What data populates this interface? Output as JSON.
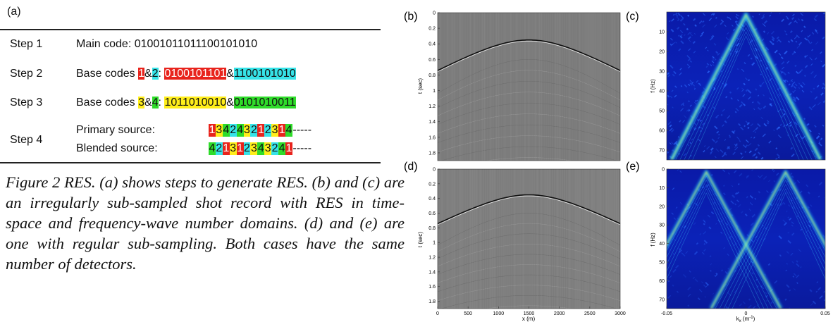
{
  "panel_a": {
    "label": "(a)",
    "steps": [
      {
        "name": "Step 1",
        "text": "Main code: 01001011011100101010"
      },
      {
        "name": "Step 2",
        "prefix": "Base codes ",
        "tag1": "1",
        "amp": "&",
        "tag2": "2",
        "colon": ": ",
        "code1": "0100101101",
        "amp2": "&",
        "code2": "1100101010"
      },
      {
        "name": "Step 3",
        "prefix": "Base codes ",
        "tag1": "3",
        "amp": "&",
        "tag2": "4",
        "colon": ": ",
        "code1": "1011010010",
        "amp2": "&",
        "code2": "0101010011"
      },
      {
        "name": "Step 4",
        "primary_label": "Primary source:",
        "blended_label": "Blended source:",
        "primary_seq": [
          "1",
          "3",
          "4",
          "2",
          "4",
          "3",
          "2",
          "1",
          "2",
          "3",
          "1",
          "4"
        ],
        "blended_seq": [
          "4",
          "2",
          "1",
          "3",
          "1",
          "2",
          "3",
          "4",
          "3",
          "2",
          "4",
          "1"
        ],
        "trail": " -----"
      }
    ],
    "colors": {
      "1": "#e8231c",
      "2": "#36e3e8",
      "3": "#ffee1a",
      "4": "#2fdc2a"
    }
  },
  "caption": {
    "text": "Figure 2 RES. (a) shows steps to generate RES. (b) and (c) are an irregularly sub-sampled shot record with RES in time-space and frequency-wave number domains. (d) and (e) are one with regular sub-sampling. Both cases have the same number of detectors."
  },
  "chart_data": [
    {
      "type": "heatmap",
      "panel": "(b)",
      "ylabel": "t (sec)",
      "xlabel": "",
      "y_ticks": [
        "0",
        "0.2",
        "0.4",
        "0.6",
        "0.8",
        "1",
        "1.2",
        "1.4",
        "1.6",
        "1.8"
      ],
      "ylim": [
        0,
        1.9
      ],
      "xlim": [
        0,
        3000
      ],
      "apex": {
        "x": 1500,
        "t": 0.35
      }
    },
    {
      "type": "heatmap",
      "panel": "(c)",
      "ylabel": "f (Hz)",
      "xlabel": "",
      "y_ticks": [
        "10",
        "20",
        "30",
        "40",
        "50",
        "60",
        "70"
      ],
      "ylim": [
        0,
        75
      ],
      "xlim": [
        -0.05,
        0.05
      ]
    },
    {
      "type": "heatmap",
      "panel": "(d)",
      "ylabel": "t (sec)",
      "xlabel": "x (m)",
      "y_ticks": [
        "0",
        "0.2",
        "0.4",
        "0.6",
        "0.8",
        "1",
        "1.2",
        "1.4",
        "1.6",
        "1.8"
      ],
      "x_ticks": [
        "0",
        "500",
        "1000",
        "1500",
        "2000",
        "2500",
        "3000"
      ],
      "ylim": [
        0,
        1.9
      ],
      "xlim": [
        0,
        3000
      ],
      "apex": {
        "x": 1500,
        "t": 0.35
      }
    },
    {
      "type": "heatmap",
      "panel": "(e)",
      "ylabel": "f (Hz)",
      "xlabel": "k",
      "xlabel_sub": "x",
      "xlabel_unit": " (m",
      "xlabel_sup": "-1",
      "xlabel_close": ")",
      "y_ticks": [
        "0",
        "10",
        "20",
        "30",
        "40",
        "50",
        "60",
        "70"
      ],
      "x_ticks": [
        "-0.05",
        "0",
        "0.05"
      ],
      "ylim": [
        0,
        75
      ],
      "xlim": [
        -0.05,
        0.05
      ]
    }
  ]
}
